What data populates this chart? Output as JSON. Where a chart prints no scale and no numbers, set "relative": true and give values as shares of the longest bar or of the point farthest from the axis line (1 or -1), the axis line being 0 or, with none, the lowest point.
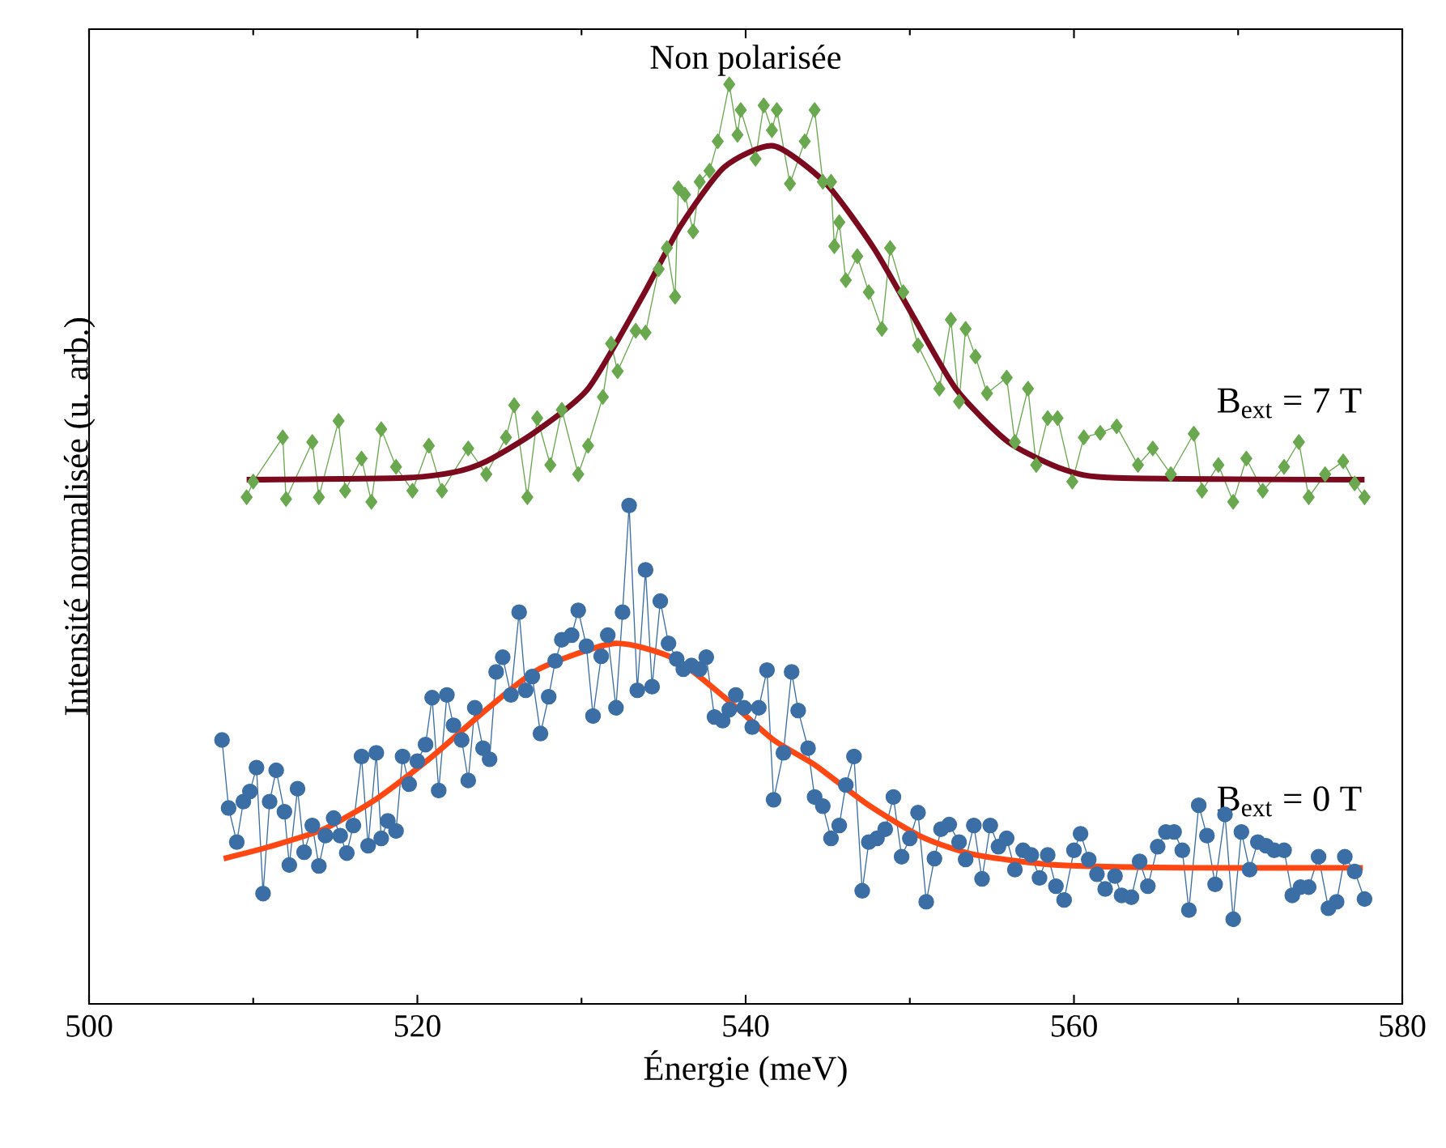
{
  "chart_data": {
    "type": "line",
    "title": "Non polarisée",
    "xlabel": "Énergie (meV)",
    "ylabel": "Intensité normalisée (u. arb.)",
    "relative": true,
    "grid": false,
    "xlim": [
      500,
      580
    ],
    "xticks": [
      500,
      520,
      540,
      560,
      580
    ],
    "series": [
      {
        "name": "B$_{ext}$ = 7 T",
        "marker": "diamond",
        "color": "#6aa84f",
        "x": [
          509.6,
          510.0,
          511.8,
          512.0,
          513.6,
          514.0,
          515.2,
          515.6,
          516.6,
          517.2,
          517.8,
          518.7,
          519.7,
          520.7,
          521.5,
          523.1,
          524.2,
          525.4,
          525.9,
          526.7,
          527.3,
          528.1,
          528.8,
          529.8,
          530.4,
          531.3,
          531.8,
          532.2,
          533.3,
          533.9,
          534.7,
          535.2,
          535.7,
          535.9,
          536.3,
          536.8,
          537.2,
          537.8,
          538.3,
          539.0,
          539.5,
          539.7,
          540.6,
          541.1,
          541.6,
          541.9,
          542.7,
          543.6,
          544.2,
          544.7,
          545.2,
          545.4,
          545.7,
          546.1,
          546.8,
          547.5,
          548.3,
          548.8,
          549.6,
          550.5,
          551.8,
          552.5,
          553.0,
          553.4,
          554.0,
          554.7,
          555.9,
          556.4,
          557.2,
          557.7,
          558.4,
          559.0,
          559.9,
          560.6,
          561.6,
          562.6,
          563.9,
          564.8,
          565.9,
          567.3,
          567.8,
          568.8,
          569.7,
          570.5,
          571.5,
          572.8,
          573.7,
          574.3,
          575.3,
          576.4,
          577.1,
          577.7
        ],
        "values": [
          0.551,
          0.568,
          0.616,
          0.549,
          0.611,
          0.551,
          0.634,
          0.558,
          0.593,
          0.546,
          0.625,
          0.584,
          0.558,
          0.607,
          0.558,
          0.604,
          0.576,
          0.616,
          0.651,
          0.551,
          0.637,
          0.586,
          0.646,
          0.576,
          0.607,
          0.66,
          0.718,
          0.688,
          0.732,
          0.73,
          0.799,
          0.822,
          0.769,
          0.887,
          0.88,
          0.84,
          0.894,
          0.906,
          0.938,
          1.0,
          0.945,
          0.972,
          0.919,
          0.977,
          0.95,
          0.972,
          0.892,
          0.938,
          0.972,
          0.894,
          0.894,
          0.824,
          0.85,
          0.787,
          0.813,
          0.774,
          0.734,
          0.822,
          0.774,
          0.716,
          0.669,
          0.744,
          0.655,
          0.734,
          0.704,
          0.664,
          0.681,
          0.611,
          0.669,
          0.586,
          0.637,
          0.637,
          0.568,
          0.616,
          0.621,
          0.628,
          0.586,
          0.604,
          0.576,
          0.62,
          0.558,
          0.586,
          0.546,
          0.593,
          0.558,
          0.584,
          0.611,
          0.551,
          0.576,
          0.59,
          0.566,
          0.551
        ]
      },
      {
        "marker": "none",
        "color": "#7b0a1e",
        "x": [
          509.6,
          519.2,
          522.2,
          524.2,
          527.1,
          530.4,
          533.7,
          536.0,
          538.7,
          541.7,
          544.9,
          547.8,
          550.1,
          552.8,
          556.0,
          559.4,
          562.6,
          577.7
        ],
        "values": [
          0.57,
          0.572,
          0.578,
          0.59,
          0.621,
          0.669,
          0.769,
          0.845,
          0.91,
          0.933,
          0.892,
          0.822,
          0.751,
          0.669,
          0.611,
          0.581,
          0.572,
          0.57
        ]
      },
      {
        "name": "B$_{ext}$ = 0 T",
        "marker": "circle",
        "color": "#3b6ea5",
        "x": [
          508.1,
          508.5,
          509.0,
          509.4,
          509.8,
          510.2,
          510.6,
          511.0,
          511.4,
          511.9,
          512.2,
          512.7,
          513.1,
          513.6,
          514.0,
          514.4,
          514.9,
          515.3,
          515.7,
          516.1,
          516.6,
          517.0,
          517.5,
          517.8,
          518.2,
          518.7,
          519.1,
          519.5,
          520.0,
          520.5,
          520.9,
          521.3,
          521.8,
          522.2,
          522.7,
          523.1,
          523.5,
          524.0,
          524.4,
          524.8,
          525.2,
          525.7,
          526.2,
          526.6,
          527.0,
          527.5,
          528.0,
          528.4,
          528.8,
          529.4,
          529.8,
          530.3,
          530.7,
          531.2,
          531.6,
          532.1,
          532.5,
          532.9,
          533.4,
          533.9,
          534.3,
          534.8,
          535.3,
          535.8,
          536.2,
          536.7,
          537.2,
          537.6,
          538.1,
          538.6,
          539.0,
          539.4,
          539.9,
          540.4,
          540.8,
          541.3,
          541.7,
          542.3,
          542.8,
          543.2,
          543.8,
          544.2,
          544.7,
          545.2,
          545.7,
          546.1,
          546.6,
          547.1,
          547.5,
          548.0,
          548.5,
          549.0,
          549.5,
          550.0,
          550.5,
          551.0,
          551.5,
          551.9,
          552.4,
          553.0,
          553.4,
          553.9,
          554.4,
          554.9,
          555.4,
          555.9,
          556.4,
          556.9,
          557.4,
          557.9,
          558.4,
          558.9,
          559.4,
          560.0,
          560.4,
          560.9,
          561.4,
          561.9,
          562.5,
          562.9,
          563.5,
          564.0,
          564.5,
          565.1,
          565.6,
          566.1,
          566.6,
          567.0,
          567.6,
          568.1,
          568.6,
          569.2,
          569.7,
          570.2,
          570.7,
          571.2,
          571.7,
          572.2,
          572.8,
          573.3,
          573.8,
          574.3,
          574.9,
          575.5,
          576.0,
          576.5,
          577.1,
          577.7
        ],
        "values": [
          0.287,
          0.213,
          0.176,
          0.22,
          0.231,
          0.257,
          0.12,
          0.22,
          0.254,
          0.209,
          0.151,
          0.234,
          0.165,
          0.194,
          0.15,
          0.183,
          0.202,
          0.183,
          0.164,
          0.194,
          0.269,
          0.172,
          0.273,
          0.18,
          0.199,
          0.188,
          0.269,
          0.239,
          0.264,
          0.282,
          0.333,
          0.232,
          0.336,
          0.303,
          0.287,
          0.243,
          0.322,
          0.278,
          0.266,
          0.361,
          0.377,
          0.336,
          0.426,
          0.341,
          0.356,
          0.294,
          0.334,
          0.373,
          0.396,
          0.401,
          0.428,
          0.389,
          0.313,
          0.378,
          0.401,
          0.322,
          0.426,
          0.542,
          0.341,
          0.472,
          0.345,
          0.438,
          0.392,
          0.375,
          0.364,
          0.368,
          0.364,
          0.377,
          0.312,
          0.308,
          0.32,
          0.336,
          0.322,
          0.301,
          0.322,
          0.363,
          0.222,
          0.273,
          0.361,
          0.319,
          0.278,
          0.225,
          0.215,
          0.18,
          0.194,
          0.238,
          0.269,
          0.123,
          0.176,
          0.18,
          0.19,
          0.225,
          0.16,
          0.18,
          0.208,
          0.111,
          0.158,
          0.19,
          0.195,
          0.176,
          0.157,
          0.194,
          0.136,
          0.194,
          0.171,
          0.18,
          0.146,
          0.167,
          0.162,
          0.137,
          0.162,
          0.128,
          0.113,
          0.167,
          0.185,
          0.157,
          0.141,
          0.125,
          0.139,
          0.118,
          0.116,
          0.155,
          0.128,
          0.171,
          0.187,
          0.187,
          0.167,
          0.102,
          0.216,
          0.183,
          0.13,
          0.206,
          0.092,
          0.187,
          0.146,
          0.176,
          0.172,
          0.167,
          0.167,
          0.118,
          0.127,
          0.127,
          0.16,
          0.104,
          0.111,
          0.16,
          0.144,
          0.114
        ]
      },
      {
        "marker": "none",
        "color": "#ff4713",
        "x": [
          508.2,
          511.0,
          514.3,
          517.6,
          520.9,
          524.2,
          527.4,
          532.0,
          535.7,
          539.0,
          541.7,
          544.2,
          547.5,
          550.8,
          554.0,
          559.0,
          567.2,
          577.6
        ],
        "values": [
          0.158,
          0.171,
          0.19,
          0.224,
          0.269,
          0.32,
          0.364,
          0.392,
          0.375,
          0.329,
          0.287,
          0.26,
          0.216,
          0.181,
          0.162,
          0.151,
          0.148,
          0.148
        ]
      }
    ]
  }
}
